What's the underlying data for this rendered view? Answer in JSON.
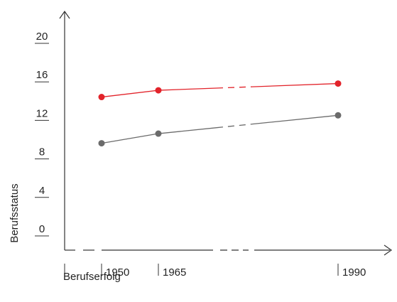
{
  "chart_data": {
    "type": "line",
    "title": "",
    "xlabel": "Berufserfolg",
    "ylabel": "Berufsstatus",
    "x_ticks": [
      "1950",
      "1965",
      "1990"
    ],
    "y_ticks": [
      "0",
      "4",
      "8",
      "12",
      "16",
      "20"
    ],
    "ylim": [
      0,
      20
    ],
    "grid": false,
    "series": [
      {
        "color": "#e2232a",
        "x": [
          1950,
          1965,
          1990
        ],
        "y": [
          15.9,
          16.6,
          17.3
        ],
        "gap_between": [
          "1965",
          "1990"
        ]
      },
      {
        "color": "#6b6b6b",
        "x": [
          1950,
          1965,
          1990
        ],
        "y": [
          11.1,
          12.1,
          14.0
        ],
        "gap_between": [
          "1965",
          "1990"
        ]
      }
    ]
  }
}
